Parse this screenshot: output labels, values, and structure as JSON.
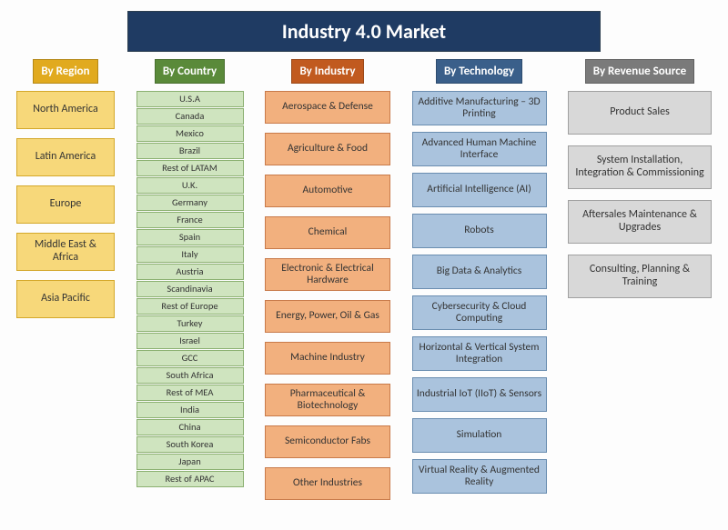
{
  "title": "Industry 4.0 Market",
  "title_bg": "#1f3b63",
  "connector_color": "#808080",
  "columns": [
    {
      "key": "region",
      "header": "By Region",
      "header_bg": "#e1aa1f",
      "item_bg": "#f7d87a",
      "item_border": "#d4a82a",
      "items": [
        "North America",
        "Latin America",
        "Europe",
        "Middle East & Africa",
        "Asia Pacific"
      ]
    },
    {
      "key": "country",
      "header": "By Country",
      "header_bg": "#5a8a3a",
      "item_bg": "#cfe4bf",
      "item_border": "#8bb070",
      "items": [
        "U.S.A",
        "Canada",
        "Mexico",
        "Brazil",
        "Rest of LATAM",
        "U.K.",
        "Germany",
        "France",
        "Spain",
        "Italy",
        "Austria",
        "Scandinavia",
        "Rest of Europe",
        "Turkey",
        "Israel",
        "GCC",
        "South Africa",
        "Rest of MEA",
        "India",
        "China",
        "South Korea",
        "Japan",
        "Rest of APAC"
      ]
    },
    {
      "key": "industry",
      "header": "By Industry",
      "header_bg": "#c15a1f",
      "item_bg": "#f2b07e",
      "item_border": "#c87a4a",
      "items": [
        "Aerospace & Defense",
        "Agriculture & Food",
        "Automotive",
        "Chemical",
        "Electronic & Electrical Hardware",
        "Energy, Power, Oil & Gas",
        "Machine Industry",
        "Pharmaceutical & Biotechnology",
        "Semiconductor Fabs",
        "Other Industries"
      ]
    },
    {
      "key": "tech",
      "header": "By Technology",
      "header_bg": "#3a5f8a",
      "item_bg": "#aac3dd",
      "item_border": "#6a8db0",
      "items": [
        "Additive Manufacturing – 3D Printing",
        "Advanced Human Machine Interface",
        "Artificial Intelligence (AI)",
        "Robots",
        "Big Data & Analytics",
        "Cybersecurity & Cloud Computing",
        "Horizontal & Vertical System Integration",
        "Industrial IoT (IIoT) & Sensors",
        "Simulation",
        "Virtual Reality & Augmented Reality"
      ]
    },
    {
      "key": "revenue",
      "header": "By Revenue Source",
      "header_bg": "#7a7a7a",
      "item_bg": "#d8d8d8",
      "item_border": "#a0a0a0",
      "items": [
        "Product Sales",
        "System Installation, Integration & Commissioning",
        "Aftersales Maintenance & Upgrades",
        "Consulting, Planning & Training"
      ]
    }
  ]
}
